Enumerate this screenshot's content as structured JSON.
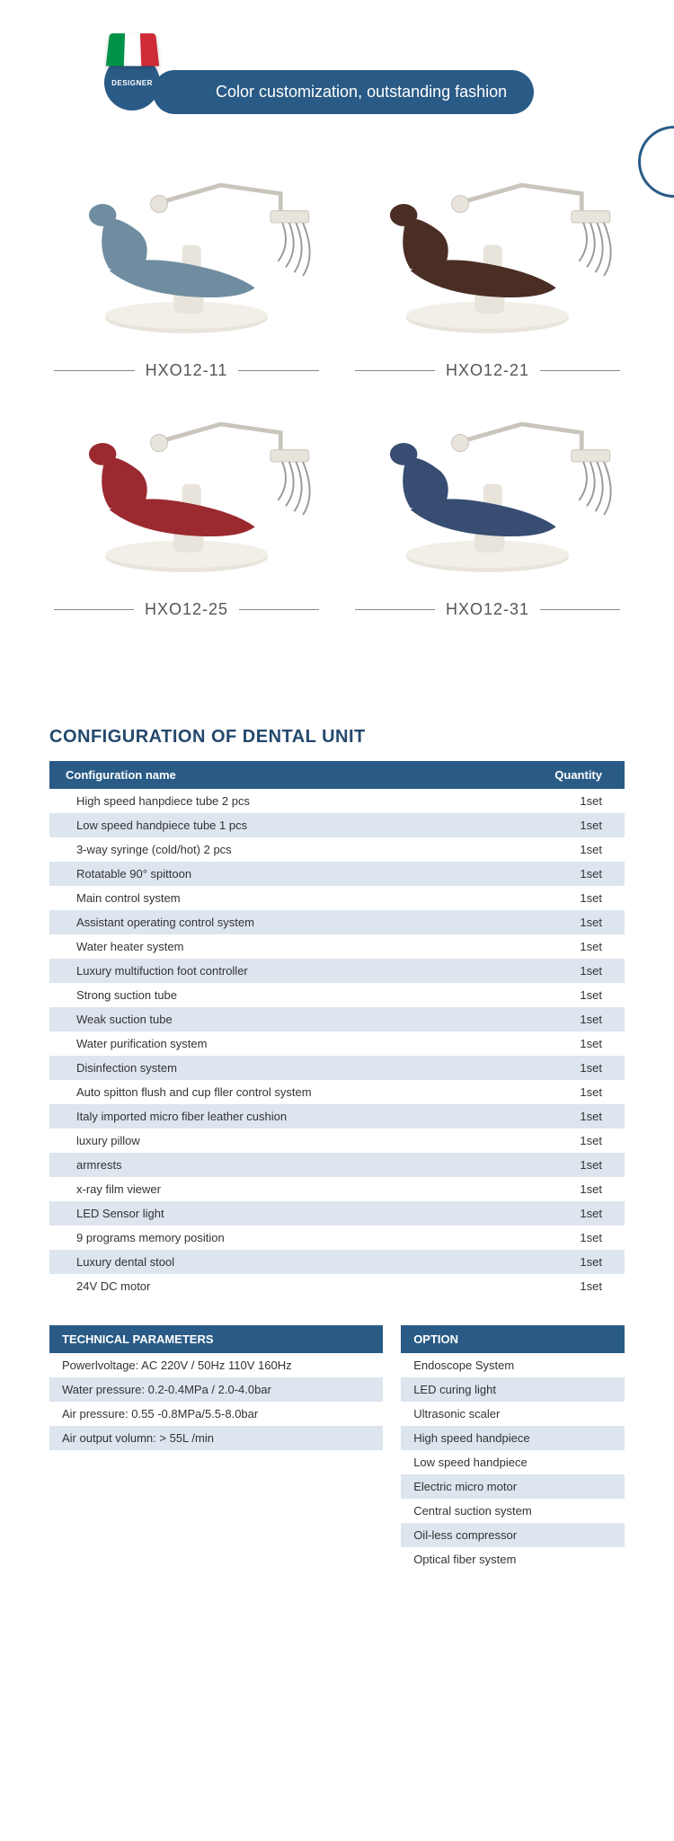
{
  "banner": {
    "designer_label": "DESIGNER",
    "pill_text": "Color customization, outstanding fashion"
  },
  "products": [
    {
      "model": "HXO12-11",
      "color": "#6f8ca0"
    },
    {
      "model": "HXO12-21",
      "color": "#4a2e24"
    },
    {
      "model": "HXO12-25",
      "color": "#9b2a30"
    },
    {
      "model": "HXO12-31",
      "color": "#374d72"
    }
  ],
  "config": {
    "title": "CONFIGURATION OF DENTAL UNIT",
    "columns": {
      "name": "Configuration name",
      "qty": "Quantity"
    },
    "rows": [
      {
        "name": "High speed hanpdiece tube 2 pcs",
        "qty": "1set"
      },
      {
        "name": "Low speed handpiece tube 1 pcs",
        "qty": "1set"
      },
      {
        "name": "3-way syringe (cold/hot) 2 pcs",
        "qty": "1set"
      },
      {
        "name": "Rotatable 90° spittoon",
        "qty": "1set"
      },
      {
        "name": "Main control system",
        "qty": "1set"
      },
      {
        "name": "Assistant operating control system",
        "qty": "1set"
      },
      {
        "name": "Water heater system",
        "qty": "1set"
      },
      {
        "name": "Luxury multifuction foot controller",
        "qty": "1set"
      },
      {
        "name": "Strong suction tube",
        "qty": "1set"
      },
      {
        "name": "Weak suction tube",
        "qty": "1set"
      },
      {
        "name": "Water purification system",
        "qty": "1set"
      },
      {
        "name": "Disinfection system",
        "qty": "1set"
      },
      {
        "name": "Auto spitton flush and cup fller control system",
        "qty": "1set"
      },
      {
        "name": "Italy imported micro fiber leather cushion",
        "qty": "1set"
      },
      {
        "name": "luxury pillow",
        "qty": "1set"
      },
      {
        "name": "armrests",
        "qty": "1set"
      },
      {
        "name": "x-ray film viewer",
        "qty": "1set"
      },
      {
        "name": "LED Sensor light",
        "qty": "1set"
      },
      {
        "name": "9 programs memory position",
        "qty": "1set"
      },
      {
        "name": "Luxury dental stool",
        "qty": "1set"
      },
      {
        "name": "24V DC motor",
        "qty": "1set"
      }
    ]
  },
  "tech": {
    "title": "TECHNICAL PARAMETERS",
    "rows": [
      "Powerlvoltage: AC 220V / 50Hz 110V 160Hz",
      "Water pressure: 0.2-0.4MPa / 2.0-4.0bar",
      "Air pressure: 0.55 -0.8MPa/5.5-8.0bar",
      "Air output volumn: > 55L /min"
    ]
  },
  "option": {
    "title": "OPTION",
    "rows": [
      "Endoscope System",
      "LED curing light",
      "Ultrasonic scaler",
      "High speed handpiece",
      "Low speed handpiece",
      "Electric micro motor",
      "Central suction system",
      "Oil-less compressor",
      "Optical fiber system"
    ]
  },
  "colors": {
    "brand": "#2a5b86",
    "stripe": "#dde5ee",
    "base_body": "#e8e4db",
    "base_shadow": "#c9c5bc"
  }
}
